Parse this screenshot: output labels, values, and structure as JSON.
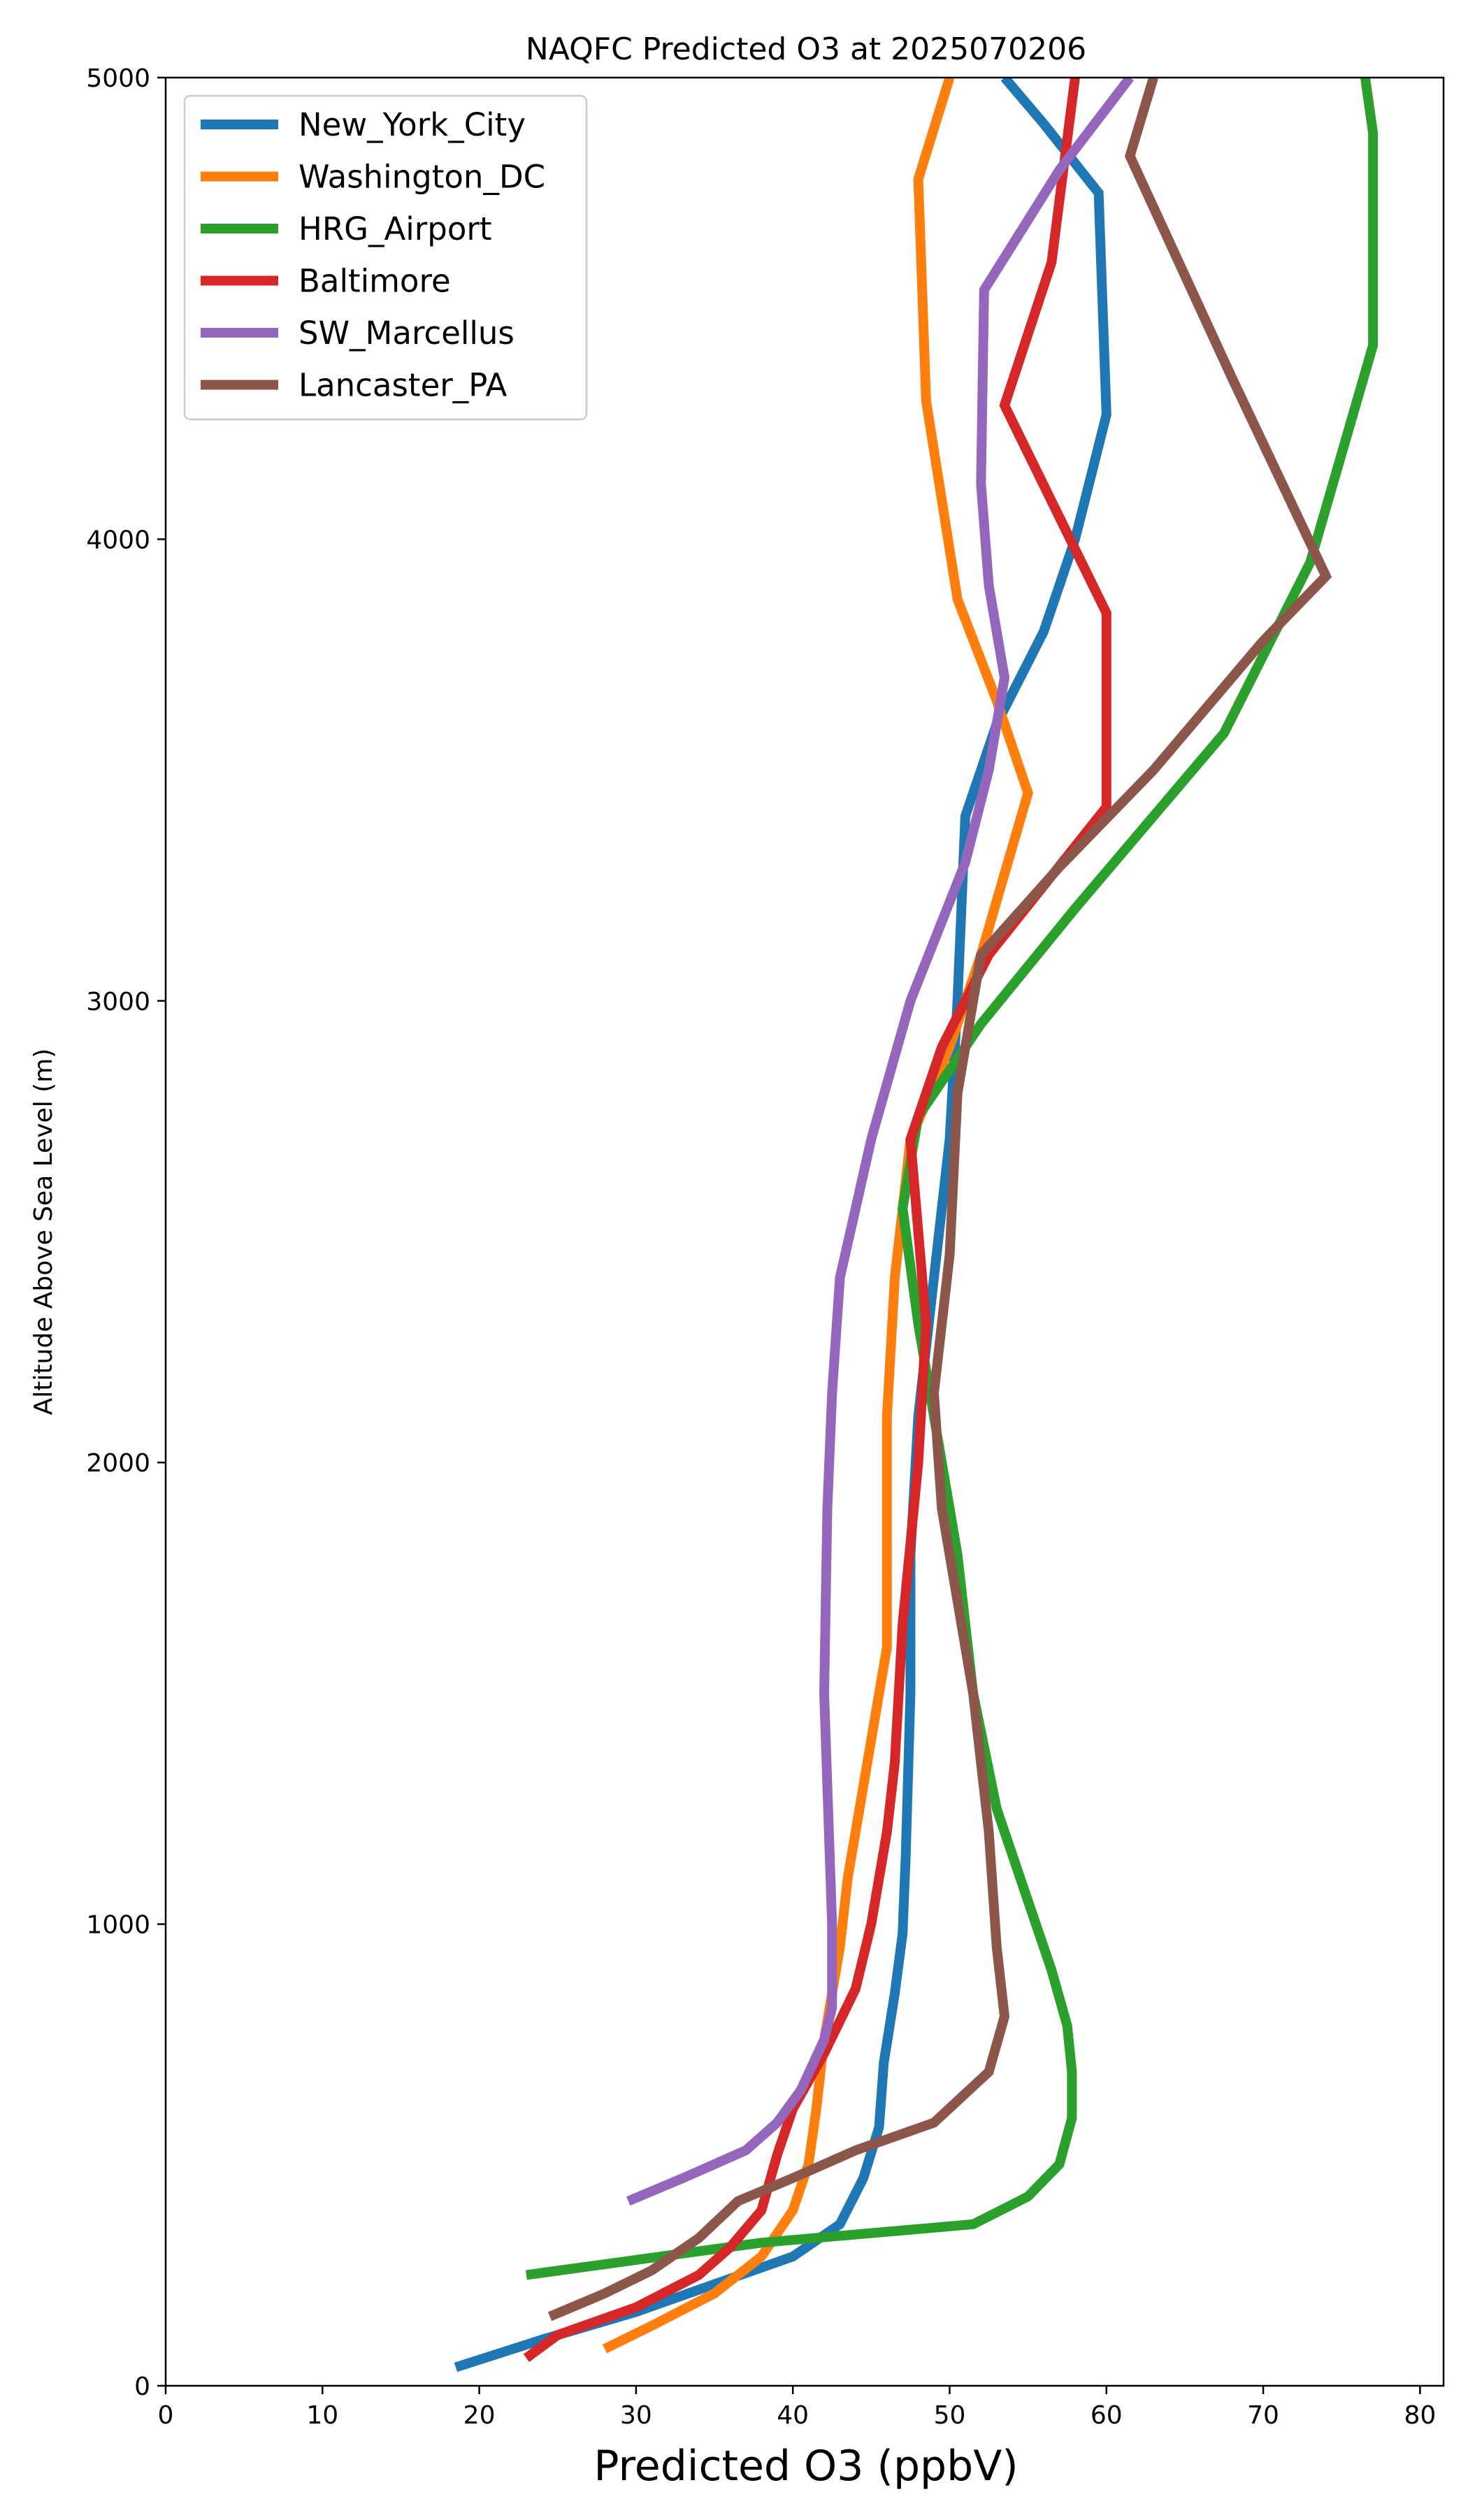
{
  "chart_data": {
    "type": "line",
    "title": "NAQFC Predicted O3 at 2025070206",
    "xlabel": "Predicted O3 (ppbV)",
    "ylabel": "Altitude Above Sea Level (m)",
    "xlim": [
      0,
      81.5
    ],
    "ylim": [
      0,
      5000
    ],
    "xticks": [
      0,
      10,
      20,
      30,
      40,
      50,
      60,
      70,
      80
    ],
    "yticks": [
      0,
      1000,
      2000,
      3000,
      4000,
      5000
    ],
    "legend_position": "upper-left",
    "grid": false,
    "series": [
      {
        "name": "New_York_City",
        "color": "#1f77b4",
        "points": [
          [
            18.5,
            40
          ],
          [
            24,
            100
          ],
          [
            30,
            160
          ],
          [
            35,
            220
          ],
          [
            40,
            280
          ],
          [
            43,
            350
          ],
          [
            44.5,
            450
          ],
          [
            45.5,
            560
          ],
          [
            45.8,
            700
          ],
          [
            46.5,
            850
          ],
          [
            47,
            980
          ],
          [
            47.2,
            1150
          ],
          [
            47.5,
            1500
          ],
          [
            47.5,
            1800
          ],
          [
            48,
            2100
          ],
          [
            49,
            2400
          ],
          [
            50,
            2700
          ],
          [
            50.5,
            3000
          ],
          [
            51,
            3400
          ],
          [
            53,
            3600
          ],
          [
            56,
            3800
          ],
          [
            58,
            4000
          ],
          [
            60,
            4270
          ],
          [
            59.5,
            4750
          ],
          [
            56,
            4900
          ],
          [
            53.5,
            5000
          ]
        ]
      },
      {
        "name": "Washington_DC",
        "color": "#ff7f0e",
        "points": [
          [
            28,
            80
          ],
          [
            31,
            130
          ],
          [
            35,
            200
          ],
          [
            38,
            280
          ],
          [
            40,
            380
          ],
          [
            41,
            480
          ],
          [
            41.5,
            600
          ],
          [
            42,
            750
          ],
          [
            43,
            950
          ],
          [
            43.5,
            1100
          ],
          [
            46,
            1600
          ],
          [
            46,
            2100
          ],
          [
            46.5,
            2400
          ],
          [
            47.5,
            2700
          ],
          [
            50,
            2900
          ],
          [
            52,
            3100
          ],
          [
            55,
            3450
          ],
          [
            53,
            3650
          ],
          [
            50.5,
            3870
          ],
          [
            48.5,
            4300
          ],
          [
            48,
            4780
          ],
          [
            50,
            5000
          ]
        ]
      },
      {
        "name": "HRG_Airport",
        "color": "#2ca02c",
        "points": [
          [
            23,
            240
          ],
          [
            38,
            310
          ],
          [
            51.5,
            350
          ],
          [
            55,
            410
          ],
          [
            57,
            480
          ],
          [
            57.8,
            580
          ],
          [
            57.8,
            680
          ],
          [
            57.5,
            780
          ],
          [
            56.5,
            900
          ],
          [
            55,
            1050
          ],
          [
            53,
            1250
          ],
          [
            51.5,
            1500
          ],
          [
            50.5,
            1800
          ],
          [
            49.5,
            2000
          ],
          [
            48,
            2300
          ],
          [
            47,
            2550
          ],
          [
            48,
            2750
          ],
          [
            52,
            2950
          ],
          [
            58,
            3200
          ],
          [
            67.5,
            3580
          ],
          [
            73,
            3950
          ],
          [
            77,
            4420
          ],
          [
            77,
            4880
          ],
          [
            76.5,
            5000
          ]
        ]
      },
      {
        "name": "Baltimore",
        "color": "#d62728",
        "points": [
          [
            23,
            60
          ],
          [
            25,
            110
          ],
          [
            30,
            170
          ],
          [
            34,
            240
          ],
          [
            36,
            300
          ],
          [
            38,
            380
          ],
          [
            39,
            500
          ],
          [
            40,
            600
          ],
          [
            42,
            720
          ],
          [
            44,
            860
          ],
          [
            45,
            1000
          ],
          [
            46,
            1200
          ],
          [
            46.5,
            1350
          ],
          [
            47,
            1650
          ],
          [
            48,
            2000
          ],
          [
            48.5,
            2300
          ],
          [
            47.5,
            2700
          ],
          [
            49.5,
            2900
          ],
          [
            52.5,
            3100
          ],
          [
            60,
            3420
          ],
          [
            60,
            3840
          ],
          [
            53.5,
            4290
          ],
          [
            56.5,
            4600
          ],
          [
            58,
            5000
          ]
        ]
      },
      {
        "name": "SW_Marcellus",
        "color": "#9467bd",
        "points": [
          [
            29.5,
            400
          ],
          [
            33,
            450
          ],
          [
            37,
            510
          ],
          [
            39,
            570
          ],
          [
            40.5,
            640
          ],
          [
            42,
            750
          ],
          [
            42.5,
            820
          ],
          [
            42.5,
            1000
          ],
          [
            42.2,
            1300
          ],
          [
            42,
            1500
          ],
          [
            42.2,
            1900
          ],
          [
            42.5,
            2150
          ],
          [
            43,
            2400
          ],
          [
            45,
            2700
          ],
          [
            47.5,
            3000
          ],
          [
            51,
            3300
          ],
          [
            52.5,
            3500
          ],
          [
            53.5,
            3700
          ],
          [
            52.5,
            3900
          ],
          [
            52,
            4120
          ],
          [
            52.2,
            4540
          ],
          [
            57,
            4800
          ],
          [
            61.5,
            5000
          ]
        ]
      },
      {
        "name": "Lancaster_PA",
        "color": "#8c564b",
        "points": [
          [
            24.5,
            150
          ],
          [
            28,
            200
          ],
          [
            31,
            250
          ],
          [
            34,
            320
          ],
          [
            36.5,
            400
          ],
          [
            40,
            450
          ],
          [
            44,
            510
          ],
          [
            49,
            570
          ],
          [
            52.5,
            680
          ],
          [
            53.5,
            800
          ],
          [
            53,
            950
          ],
          [
            52.5,
            1200
          ],
          [
            51.5,
            1500
          ],
          [
            50.5,
            1700
          ],
          [
            49.5,
            1900
          ],
          [
            49,
            2150
          ],
          [
            50,
            2450
          ],
          [
            50.5,
            2800
          ],
          [
            52,
            3100
          ],
          [
            57,
            3290
          ],
          [
            63,
            3500
          ],
          [
            70,
            3780
          ],
          [
            74,
            3920
          ],
          [
            68,
            4350
          ],
          [
            61.5,
            4830
          ],
          [
            63,
            5000
          ]
        ]
      }
    ]
  }
}
